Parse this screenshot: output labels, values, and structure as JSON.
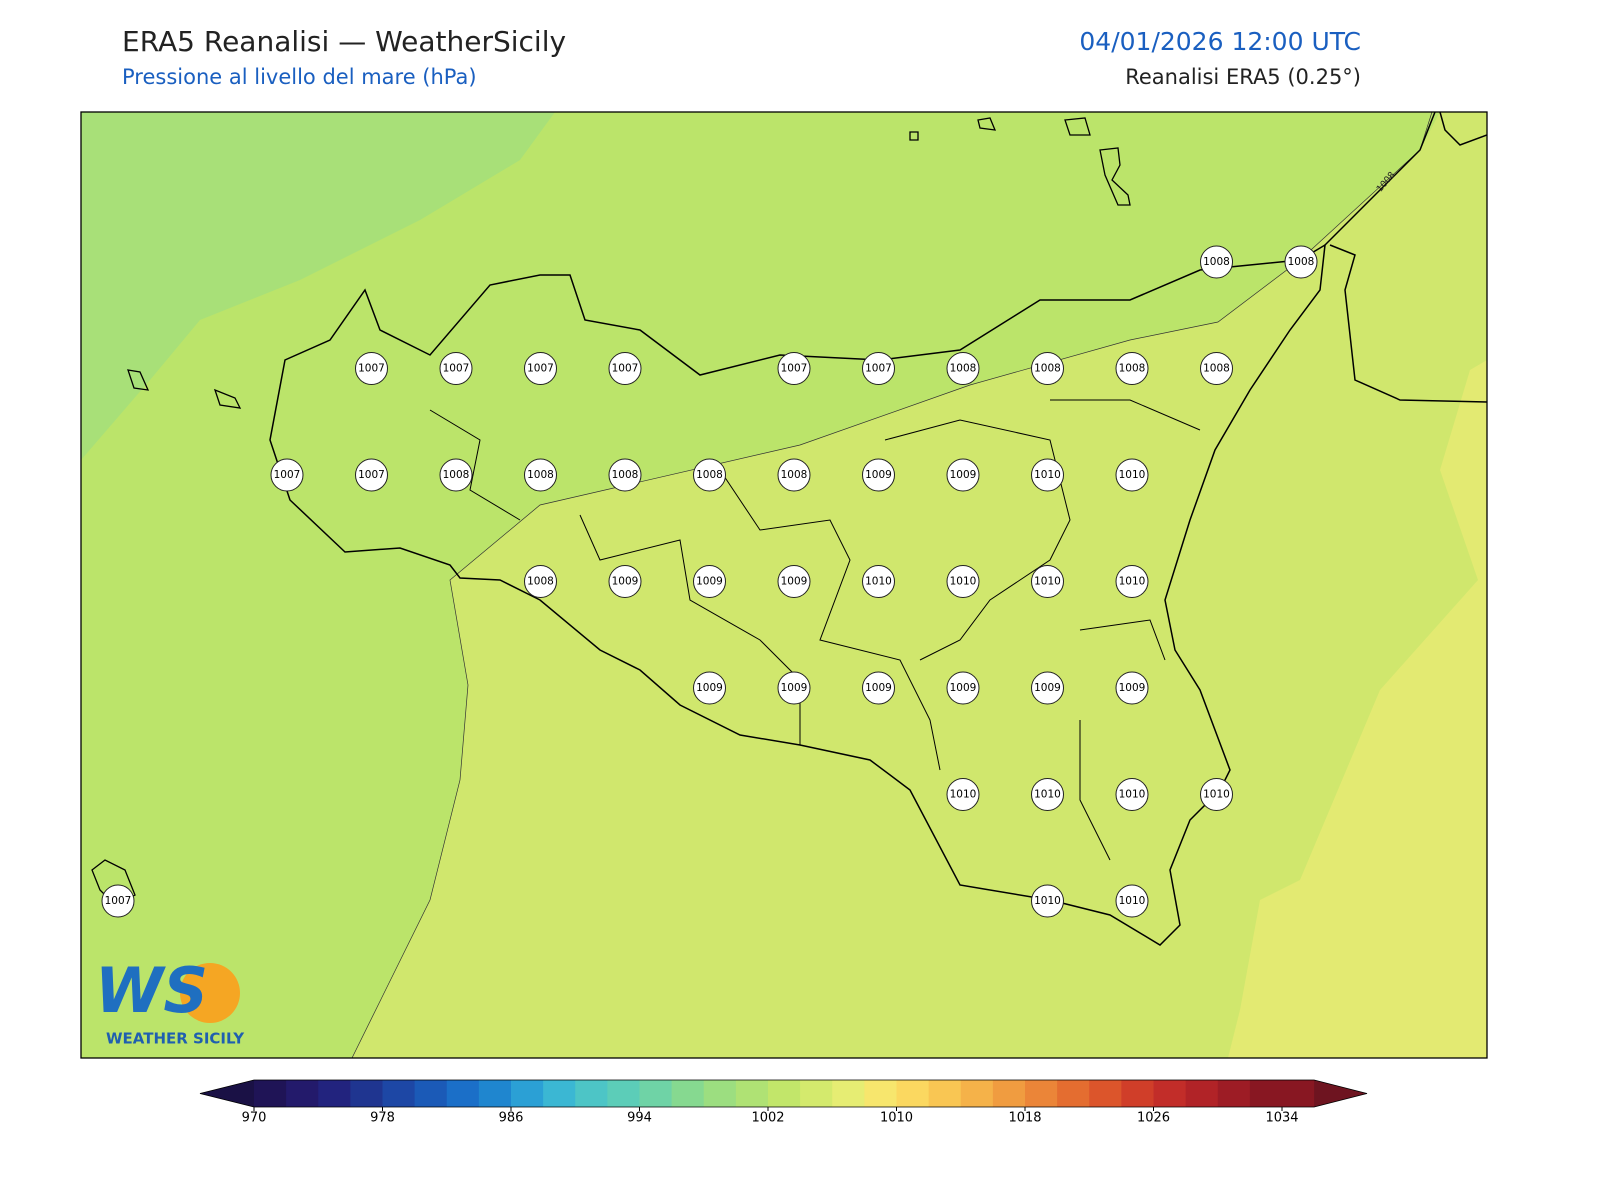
{
  "header": {
    "title": "ERA5 Reanalisi — WeatherSicily",
    "subtitle": "Pressione al livello del mare (hPa)",
    "datetime": "04/01/2026 12:00 UTC",
    "source": "Reanalisi ERA5 (0.25°)"
  },
  "map": {
    "contour_label": "1008",
    "stations": [
      1008,
      1008,
      1007,
      1007,
      1007,
      1007,
      1007,
      1007,
      1008,
      1008,
      1008,
      1008,
      1007,
      1007,
      1008,
      1008,
      1008,
      1008,
      1008,
      1009,
      1009,
      1010,
      1010,
      1008,
      1009,
      1009,
      1009,
      1010,
      1010,
      1010,
      1010,
      1009,
      1009,
      1009,
      1009,
      1009,
      1009,
      1010,
      1010,
      1010,
      1010,
      1007,
      1010,
      1010
    ]
  },
  "colorbar": {
    "ticks": [
      970,
      978,
      986,
      994,
      1002,
      1010,
      1018,
      1026,
      1034
    ]
  },
  "logo": {
    "mark": "WS",
    "text": "WEATHER SICILY"
  }
}
